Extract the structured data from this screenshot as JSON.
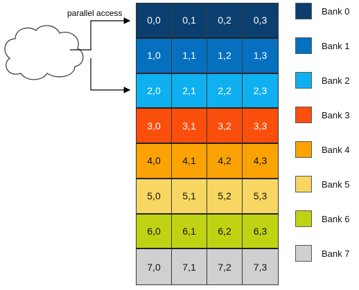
{
  "caption": "parallel access",
  "grid": {
    "rows": [
      [
        "0,0",
        "0,1",
        "0,2",
        "0,3"
      ],
      [
        "1,0",
        "1,1",
        "1,2",
        "1,3"
      ],
      [
        "2,0",
        "2,1",
        "2,2",
        "2,3"
      ],
      [
        "3,0",
        "3,1",
        "3,2",
        "3,3"
      ],
      [
        "4,0",
        "4,1",
        "4,2",
        "4,3"
      ],
      [
        "5,0",
        "5,1",
        "5,2",
        "5,3"
      ],
      [
        "6,0",
        "6,1",
        "6,2",
        "6,3"
      ],
      [
        "7,0",
        "7,1",
        "7,2",
        "7,3"
      ]
    ]
  },
  "banks": [
    {
      "label": "Bank 0",
      "color": "#0b3f6f",
      "text_color": "#ffffff"
    },
    {
      "label": "Bank 1",
      "color": "#0670c0",
      "text_color": "#ffffff"
    },
    {
      "label": "Bank 2",
      "color": "#0fb0ef",
      "text_color": "#ffffff"
    },
    {
      "label": "Bank 3",
      "color": "#fa4f0c",
      "text_color": "#ffffff"
    },
    {
      "label": "Bank 4",
      "color": "#fba204",
      "text_color": "#111111"
    },
    {
      "label": "Bank 5",
      "color": "#f7d761",
      "text_color": "#111111"
    },
    {
      "label": "Bank 6",
      "color": "#bfd313",
      "text_color": "#111111"
    },
    {
      "label": "Bank 7",
      "color": "#d0d0d0",
      "text_color": "#111111"
    }
  ],
  "icons": {
    "source": "cloud-icon",
    "arrows": [
      "arrow-right-icon",
      "arrow-right-icon"
    ]
  }
}
